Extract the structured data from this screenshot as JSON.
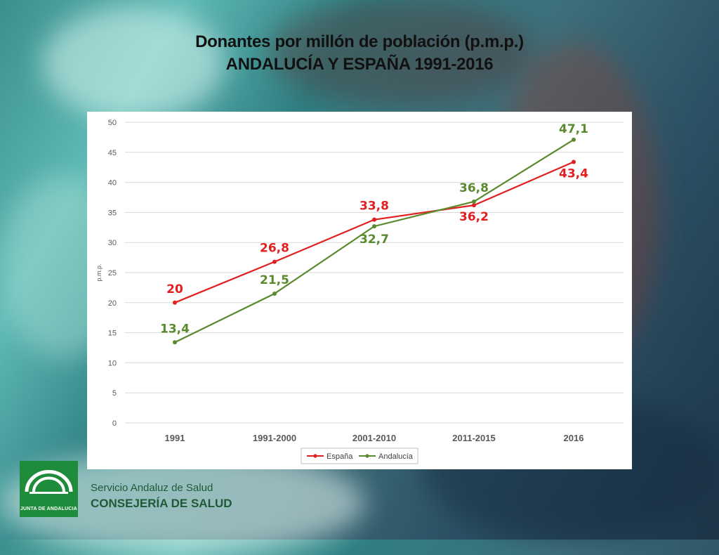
{
  "header": {
    "title": "Donantes por millón de población (p.m.p.)",
    "subtitle": "ANDALUCÍA Y ESPAÑA 1991-2016"
  },
  "chart_data": {
    "type": "line",
    "categories": [
      "1991",
      "1991-2000",
      "2001-2010",
      "2011-2015",
      "2016"
    ],
    "series": [
      {
        "name": "España",
        "color": "#e02020",
        "values": [
          20,
          26.8,
          33.8,
          36.2,
          43.4
        ],
        "labels": [
          "20",
          "26,8",
          "33,8",
          "36,2",
          "43,4"
        ]
      },
      {
        "name": "Andalucía",
        "color": "#5a8a2e",
        "values": [
          13.4,
          21.5,
          32.7,
          36.8,
          47.1
        ],
        "labels": [
          "13,4",
          "21,5",
          "32,7",
          "36,8",
          "47,1"
        ]
      }
    ],
    "ylabel": "p.m.p.",
    "ylim": [
      0,
      50
    ],
    "yticks": [
      0,
      5,
      10,
      15,
      20,
      25,
      30,
      35,
      40,
      45,
      50
    ],
    "grid": true,
    "legend": "bottom"
  },
  "footer": {
    "logo_text": "JUNTA DE ANDALUCIA",
    "org_line1": "Servicio Andaluz de Salud",
    "org_line2": "CONSEJERÍA DE SALUD"
  }
}
